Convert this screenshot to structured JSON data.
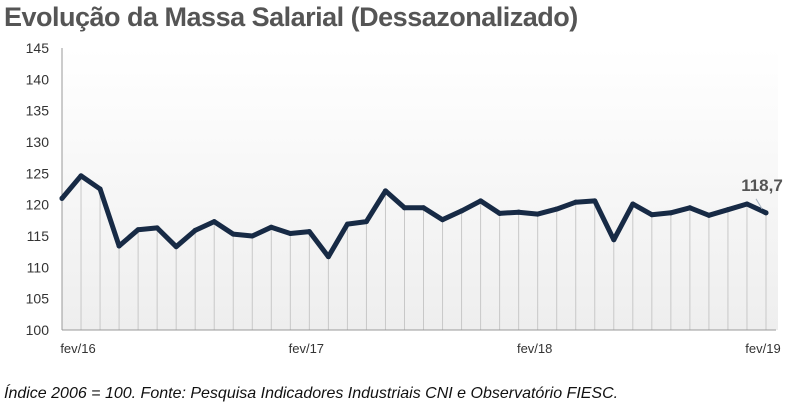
{
  "chart_data": {
    "type": "line",
    "title": "Evolução da Massa Salarial (Dessazonalizado)",
    "subtitle": "",
    "xlabel": "",
    "ylabel": "",
    "ylim": [
      100,
      145
    ],
    "yticks": [
      100,
      105,
      110,
      115,
      120,
      125,
      130,
      135,
      140,
      145
    ],
    "ytick_labels": [
      "100",
      "105",
      "110",
      "115",
      "120",
      "125",
      "130",
      "135",
      "140",
      "145"
    ],
    "x_tick_labels": [
      "fev/16",
      "fev/17",
      "fev/18",
      "fev/19"
    ],
    "x_tick_positions": [
      1,
      13,
      25,
      37
    ],
    "grid": "vertical lines at each month",
    "legend": "none",
    "line_color": "#172a45",
    "series": [
      {
        "values": [
          121.0,
          124.6,
          122.5,
          113.4,
          116.0,
          116.3,
          113.3,
          115.9,
          117.3,
          115.3,
          115.0,
          116.4,
          115.4,
          115.7,
          111.7,
          116.9,
          117.3,
          122.2,
          119.5,
          119.5,
          117.6,
          119.0,
          120.6,
          118.6,
          118.8,
          118.5,
          119.3,
          120.4,
          120.6,
          114.4,
          120.1,
          118.4,
          118.7,
          119.5,
          118.3,
          119.2,
          120.1,
          118.7
        ]
      }
    ],
    "annotations": [
      {
        "text": "118,7",
        "point_index": 37
      }
    ]
  },
  "footnote": "Índice 2006 = 100. Fonte: Pesquisa Indicadores Industriais CNI e Observatório FIESC."
}
